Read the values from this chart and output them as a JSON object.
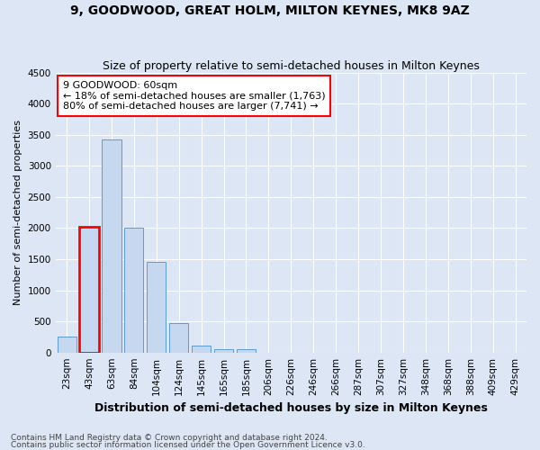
{
  "title": "9, GOODWOOD, GREAT HOLM, MILTON KEYNES, MK8 9AZ",
  "subtitle": "Size of property relative to semi-detached houses in Milton Keynes",
  "xlabel": "Distribution of semi-detached houses by size in Milton Keynes",
  "ylabel": "Number of semi-detached properties",
  "footnote1": "Contains HM Land Registry data © Crown copyright and database right 2024.",
  "footnote2": "Contains public sector information licensed under the Open Government Licence v3.0.",
  "categories": [
    "23sqm",
    "43sqm",
    "63sqm",
    "84sqm",
    "104sqm",
    "124sqm",
    "145sqm",
    "165sqm",
    "185sqm",
    "206sqm",
    "226sqm",
    "246sqm",
    "266sqm",
    "287sqm",
    "307sqm",
    "327sqm",
    "348sqm",
    "368sqm",
    "388sqm",
    "409sqm",
    "429sqm"
  ],
  "values": [
    250,
    2020,
    3430,
    2010,
    1460,
    470,
    110,
    60,
    50,
    0,
    0,
    0,
    0,
    0,
    0,
    0,
    0,
    0,
    0,
    0,
    0
  ],
  "bar_color": "#c5d8f0",
  "bar_edge_color": "#5b9bd5",
  "highlight_bar_index": 1,
  "highlight_edge_color": "red",
  "annotation_text": "9 GOODWOOD: 60sqm\n← 18% of semi-detached houses are smaller (1,763)\n80% of semi-detached houses are larger (7,741) →",
  "ylim": [
    0,
    4500
  ],
  "fig_bg_color": "#dce6f5",
  "plot_bg_color": "#dce6f5",
  "grid_color": "#ffffff",
  "title_fontsize": 10,
  "subtitle_fontsize": 9,
  "xlabel_fontsize": 9,
  "ylabel_fontsize": 8,
  "tick_fontsize": 7.5,
  "annotation_fontsize": 8,
  "footnote_fontsize": 6.5
}
